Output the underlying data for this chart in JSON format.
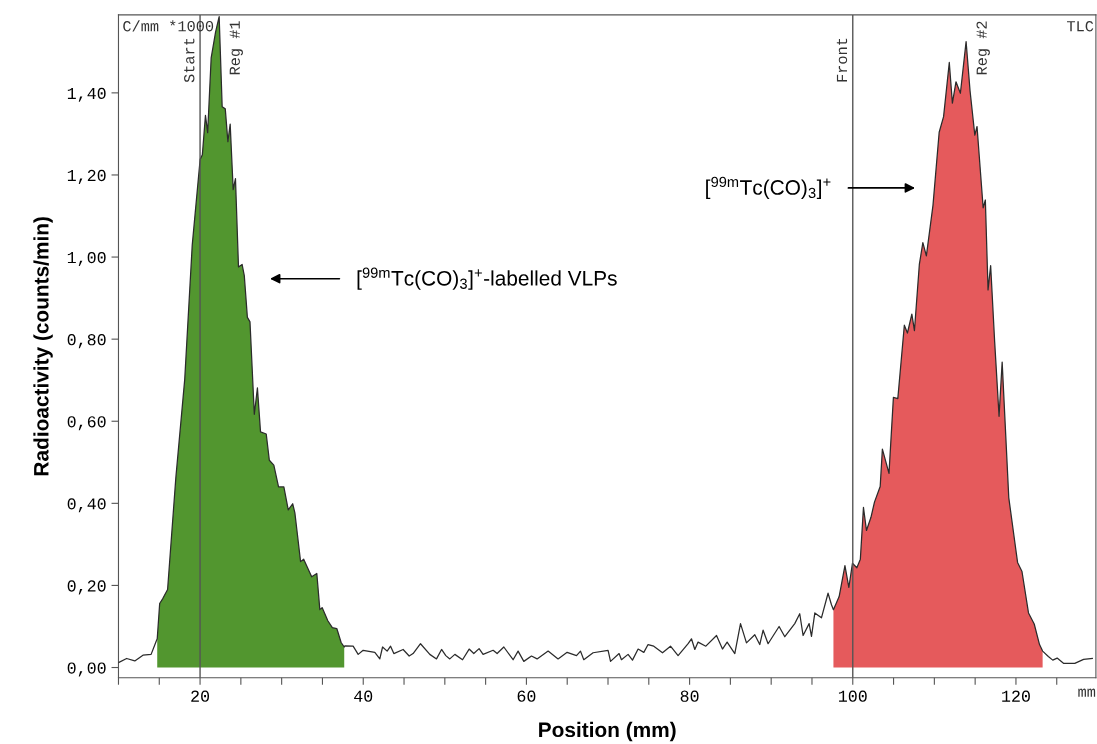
{
  "chart_data": {
    "type": "line",
    "xlabel": "Position (mm)",
    "ylabel": "Radioactivity (counts/min)",
    "xlim": [
      10,
      129.8
    ],
    "ylim": [
      -0.025,
      1.59
    ],
    "xticks": [
      {
        "value": 10,
        "label": null
      },
      {
        "value": 15,
        "label": null
      },
      20,
      {
        "value": 25,
        "label": null
      },
      {
        "value": 30,
        "label": null
      },
      {
        "value": 35,
        "label": null
      },
      40,
      {
        "value": 45,
        "label": null
      },
      {
        "value": 50,
        "label": null
      },
      {
        "value": 55,
        "label": null
      },
      60,
      {
        "value": 65,
        "label": null
      },
      {
        "value": 70,
        "label": null
      },
      {
        "value": 75,
        "label": null
      },
      80,
      {
        "value": 85,
        "label": null
      },
      {
        "value": 90,
        "label": null
      },
      {
        "value": 95,
        "label": null
      },
      100,
      {
        "value": 105,
        "label": null
      },
      {
        "value": 110,
        "label": null
      },
      {
        "value": 115,
        "label": null
      },
      120,
      {
        "value": 125,
        "label": null
      }
    ],
    "yticks": [
      {
        "value": 0,
        "label": "0,00"
      },
      {
        "value": 0.2,
        "label": "0,20"
      },
      {
        "value": 0.4,
        "label": "0,40"
      },
      {
        "value": 0.6,
        "label": "0,60"
      },
      {
        "value": 0.8,
        "label": "0,80"
      },
      {
        "value": 1.0,
        "label": "1,00"
      },
      {
        "value": 1.2,
        "label": "1,20"
      },
      {
        "value": 1.4,
        "label": "1,40"
      }
    ],
    "grid": false,
    "legend": false,
    "series": [
      {
        "type": "area",
        "name": "Reg #1",
        "color": "#52962f",
        "x": [
          14.75,
          15.05,
          15.43,
          16.02,
          17.03,
          18.12,
          19.04,
          20.01,
          20.28,
          20.66,
          20.93,
          21.36,
          21.9,
          22.34,
          22.71,
          23.09,
          23.41,
          23.69,
          24.06,
          24.34,
          24.71,
          25.15,
          25.42,
          25.8,
          26.12,
          26.65,
          27.03,
          27.41,
          28.11,
          28.49,
          29.04,
          29.62,
          30.27,
          30.81,
          31.35,
          31.62,
          32.32,
          32.7,
          33.68,
          34.31,
          34.68,
          34.96,
          35.66,
          36.21,
          36.76,
          37.29,
          37.67
        ],
        "values": [
          0.07,
          0.156,
          0.168,
          0.19,
          0.462,
          0.702,
          1.029,
          1.238,
          1.249,
          1.345,
          1.303,
          1.485,
          1.548,
          1.586,
          1.366,
          1.361,
          1.281,
          1.324,
          1.164,
          1.191,
          0.976,
          0.982,
          0.955,
          0.853,
          0.842,
          0.617,
          0.681,
          0.574,
          0.569,
          0.505,
          0.493,
          0.44,
          0.44,
          0.384,
          0.399,
          0.377,
          0.258,
          0.264,
          0.221,
          0.229,
          0.141,
          0.146,
          0.114,
          0.097,
          0.095,
          0.061,
          0.05
        ]
      },
      {
        "type": "area",
        "name": "Reg #2",
        "color": "#e55a5c",
        "x": [
          97.63,
          98.33,
          99.04,
          99.52,
          99.96,
          100.5,
          100.93,
          101.31,
          101.68,
          102.23,
          102.66,
          103.36,
          103.63,
          104.44,
          104.98,
          105.52,
          106.32,
          106.7,
          107.24,
          107.56,
          108.16,
          108.59,
          109.02,
          109.83,
          110.59,
          111.13,
          111.83,
          112.21,
          112.65,
          113.19,
          113.89,
          114.38,
          114.96,
          115.23,
          115.98,
          116.25,
          116.58,
          116.9,
          117.39,
          117.93,
          118.31,
          119.12,
          120.2,
          120.74,
          121.54,
          122.24,
          122.89,
          123.27
        ],
        "values": [
          0.141,
          0.173,
          0.248,
          0.195,
          0.254,
          0.243,
          0.264,
          0.39,
          0.334,
          0.366,
          0.403,
          0.441,
          0.532,
          0.473,
          0.658,
          0.655,
          0.834,
          0.815,
          0.861,
          0.821,
          0.982,
          1.035,
          1.003,
          1.126,
          1.304,
          1.342,
          1.474,
          1.375,
          1.427,
          1.399,
          1.525,
          1.404,
          1.297,
          1.318,
          1.12,
          1.139,
          0.92,
          0.979,
          0.794,
          0.612,
          0.744,
          0.414,
          0.256,
          0.234,
          0.133,
          0.106,
          0.056,
          0.04
        ]
      },
      {
        "color": "#2b2b2b",
        "x": [
          10,
          11,
          12,
          13,
          14,
          14.6,
          14.75,
          15.05,
          15.43,
          16.02,
          17.03,
          18.12,
          19.04,
          20.01,
          20.28,
          20.66,
          20.93,
          21.36,
          21.9,
          22.34,
          22.71,
          23.09,
          23.41,
          23.69,
          24.06,
          24.34,
          24.71,
          25.15,
          25.42,
          25.8,
          26.12,
          26.65,
          27.03,
          27.41,
          28.11,
          28.49,
          29.04,
          29.62,
          30.27,
          30.81,
          31.35,
          31.62,
          32.32,
          32.7,
          33.68,
          34.31,
          34.68,
          34.96,
          35.66,
          36.21,
          36.76,
          37.29,
          37.67,
          37.75,
          38.76,
          39.38,
          39.99,
          41.42,
          42.03,
          42.37,
          42.93,
          43.35,
          43.75,
          44.89,
          45.63,
          46.11,
          47.02,
          48.16,
          48.98,
          49.6,
          50.12,
          50.61,
          51.23,
          52.17,
          52.98,
          53.55,
          54.2,
          54.69,
          55.92,
          56.41,
          57.23,
          58.37,
          58.98,
          59.68,
          60.62,
          61.31,
          62.66,
          63.88,
          64.99,
          66.14,
          66.63,
          67.03,
          68.17,
          70.01,
          70.31,
          71.36,
          71.65,
          72.46,
          73.0,
          73.69,
          74.39,
          74.91,
          75.61,
          76.68,
          77.66,
          78.59,
          79.82,
          80.23,
          80.64,
          81.04,
          81.99,
          83.3,
          84.03,
          84.6,
          85.54,
          86.24,
          86.97,
          87.99,
          88.6,
          89.01,
          89.62,
          90.97,
          91.67,
          92.89,
          93.5,
          93.91,
          94.65,
          94.94,
          95.35,
          96.16,
          96.97,
          97.39,
          97.63,
          98.33,
          99.04,
          99.52,
          99.96,
          100.5,
          100.93,
          101.31,
          101.68,
          102.23,
          102.66,
          103.36,
          103.63,
          104.44,
          104.98,
          105.52,
          106.32,
          106.7,
          107.24,
          107.56,
          108.16,
          108.59,
          109.02,
          109.83,
          110.59,
          111.13,
          111.83,
          112.21,
          112.65,
          113.19,
          113.89,
          114.38,
          114.96,
          115.23,
          115.98,
          116.25,
          116.58,
          116.9,
          117.39,
          117.93,
          118.31,
          119.12,
          120.2,
          120.74,
          121.54,
          122.24,
          122.89,
          123.27,
          123.97,
          124.51,
          125.05,
          125.86,
          127.21,
          128.29,
          129.36
        ],
        "values": [
          0.012,
          0.022,
          0.016,
          0.03,
          0.032,
          0.063,
          0.07,
          0.156,
          0.168,
          0.19,
          0.462,
          0.702,
          1.029,
          1.238,
          1.249,
          1.345,
          1.303,
          1.485,
          1.548,
          1.586,
          1.366,
          1.361,
          1.281,
          1.324,
          1.164,
          1.191,
          0.976,
          0.982,
          0.955,
          0.853,
          0.842,
          0.617,
          0.681,
          0.574,
          0.569,
          0.505,
          0.493,
          0.44,
          0.44,
          0.384,
          0.399,
          0.377,
          0.258,
          0.264,
          0.221,
          0.229,
          0.141,
          0.146,
          0.114,
          0.097,
          0.095,
          0.061,
          0.05,
          0.053,
          0.052,
          0.032,
          0.042,
          0.037,
          0.021,
          0.05,
          0.04,
          0.052,
          0.034,
          0.044,
          0.028,
          0.034,
          0.058,
          0.032,
          0.021,
          0.044,
          0.029,
          0.021,
          0.032,
          0.019,
          0.045,
          0.034,
          0.046,
          0.032,
          0.042,
          0.034,
          0.05,
          0.019,
          0.04,
          0.015,
          0.028,
          0.021,
          0.04,
          0.021,
          0.037,
          0.029,
          0.04,
          0.019,
          0.036,
          0.042,
          0.015,
          0.034,
          0.019,
          0.032,
          0.018,
          0.045,
          0.037,
          0.056,
          0.052,
          0.036,
          0.052,
          0.029,
          0.058,
          0.07,
          0.044,
          0.062,
          0.052,
          0.078,
          0.045,
          0.062,
          0.034,
          0.107,
          0.06,
          0.08,
          0.056,
          0.091,
          0.058,
          0.1,
          0.075,
          0.107,
          0.131,
          0.078,
          0.107,
          0.076,
          0.133,
          0.121,
          0.181,
          0.153,
          0.141,
          0.173,
          0.248,
          0.195,
          0.254,
          0.243,
          0.264,
          0.39,
          0.334,
          0.366,
          0.403,
          0.441,
          0.532,
          0.473,
          0.658,
          0.655,
          0.834,
          0.815,
          0.861,
          0.821,
          0.982,
          1.035,
          1.003,
          1.126,
          1.304,
          1.342,
          1.474,
          1.375,
          1.427,
          1.399,
          1.525,
          1.404,
          1.297,
          1.318,
          1.12,
          1.139,
          0.92,
          0.979,
          0.794,
          0.612,
          0.744,
          0.414,
          0.256,
          0.234,
          0.133,
          0.106,
          0.056,
          0.04,
          0.027,
          0.018,
          0.023,
          0.01,
          0.01,
          0.02,
          0.022
        ]
      }
    ],
    "ref_lines": [
      {
        "axis": "x",
        "value": 20,
        "label": "Start",
        "color": "#555555"
      },
      {
        "axis": "x",
        "value": 100,
        "label": "Front",
        "color": "#555555"
      }
    ],
    "annotations": [
      "C/mm *1000",
      "TLC",
      "mm",
      "[$^{99m}$Tc(CO)$_{3}$]$^{+}$-labelled VLPs",
      "[$^{99m}$Tc(CO)$_{3}$]$^{+}$"
    ]
  }
}
